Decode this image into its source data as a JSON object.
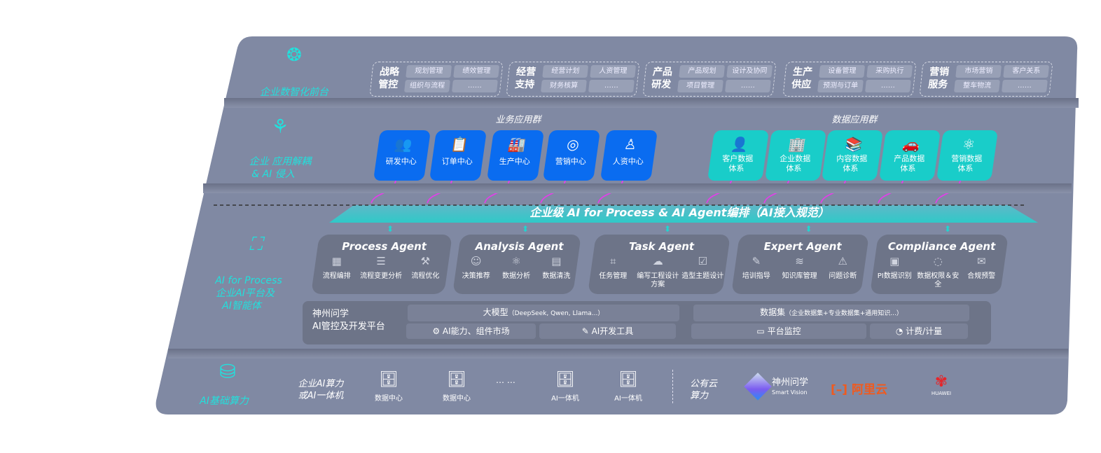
{
  "layers": {
    "frontend": {
      "label": "企业数智化前台",
      "icon": "brain-icon",
      "groups": [
        {
          "title": "战略管控",
          "items": [
            "规划管理",
            "绩效管理",
            "组织与流程",
            "……"
          ]
        },
        {
          "title": "经营支持",
          "items": [
            "经营计划",
            "人资管理",
            "财务核算",
            "……"
          ]
        },
        {
          "title": "产品研发",
          "items": [
            "产品规划",
            "设计及协同",
            "项目管理",
            "……"
          ]
        },
        {
          "title": "生产供应",
          "items": [
            "设备管理",
            "采购执行",
            "预测与订单",
            "……"
          ]
        },
        {
          "title": "营销服务",
          "items": [
            "市场营销",
            "客户关系",
            "整车物流",
            "……"
          ]
        }
      ]
    },
    "apps": {
      "label_1": "企业 应用解耦",
      "label_2": "& AI 侵入",
      "icon": "molecule-icon",
      "business_title": "业务应用群",
      "business": [
        {
          "name": "研发中心",
          "icon": "users-icon"
        },
        {
          "name": "订单中心",
          "icon": "clipboard-icon"
        },
        {
          "name": "生产中心",
          "icon": "factory-icon"
        },
        {
          "name": "营销中心",
          "icon": "target-icon"
        },
        {
          "name": "人资中心",
          "icon": "person-icon"
        }
      ],
      "data_title": "数据应用群",
      "data": [
        {
          "name": "客户数据体系",
          "l1": "客户数据",
          "l2": "体系",
          "icon": "user-icon"
        },
        {
          "name": "企业数据体系",
          "l1": "企业数据",
          "l2": "体系",
          "icon": "building-icon"
        },
        {
          "name": "内容数据体系",
          "l1": "内容数据",
          "l2": "体系",
          "icon": "books-icon"
        },
        {
          "name": "产品数据体系",
          "l1": "产品数据",
          "l2": "体系",
          "icon": "car-icon"
        },
        {
          "name": "营销数据体系",
          "l1": "营销数据",
          "l2": "体系",
          "icon": "atom-icon"
        }
      ]
    },
    "banner": "企业级 AI for Process & AI Agent编排（AI接入规范）",
    "ai": {
      "label_1": "AI for Process",
      "label_2": "企业AI平台及",
      "label_3": "AI智能体",
      "icon": "face-scan-icon",
      "agents": [
        {
          "name": "Process Agent",
          "items": [
            "流程编排",
            "流程变更分析",
            "流程优化"
          ]
        },
        {
          "name": "Analysis Agent",
          "items": [
            "决策推荐",
            "数据分析",
            "数据清洗"
          ]
        },
        {
          "name": "Task Agent",
          "items": [
            "任务管理",
            "编写工程设计方案",
            "造型主题设计"
          ]
        },
        {
          "name": "Expert Agent",
          "items": [
            "培训指导",
            "知识库管理",
            "问题诊断"
          ]
        },
        {
          "name": "Compliance Agent",
          "items": [
            "PI数据识别",
            "数据权限＆安全",
            "合规预警"
          ]
        }
      ],
      "platform": {
        "title_1": "神州问学",
        "title_2": "AI管控及开发平台",
        "model": "大模型",
        "model_note": "（DeepSeek, Qwen, Llama...）",
        "dataset": "数据集",
        "dataset_note": "（企业数据集+专业数据集+通用知识...）",
        "tools": [
          "AI能力、组件市场",
          "AI开发工具",
          "平台监控",
          "计费/计量"
        ]
      }
    },
    "infra": {
      "label": "AI基础算力",
      "icon": "database-icon",
      "private_1": "企业AI算力",
      "private_2": "或AI一体机",
      "nodes": [
        "数据中心",
        "数据中心",
        "AI一体机",
        "AI一体机"
      ],
      "ellipsis": "… …",
      "public_1": "公有云",
      "public_2": "算力",
      "vendors": {
        "shenzhou": "神州问学",
        "shenzhou_sub": "Smart Vision",
        "aliyun": "阿里云",
        "huawei": "HUAWEI"
      }
    }
  },
  "colors": {
    "panel": "#8089a3",
    "business": "#0a6cf0",
    "data": "#19cdc9",
    "accent": "#22e0dc",
    "connector": "#e040e8",
    "aliyun": "#f05a1e",
    "huawei": "#e4262b"
  }
}
